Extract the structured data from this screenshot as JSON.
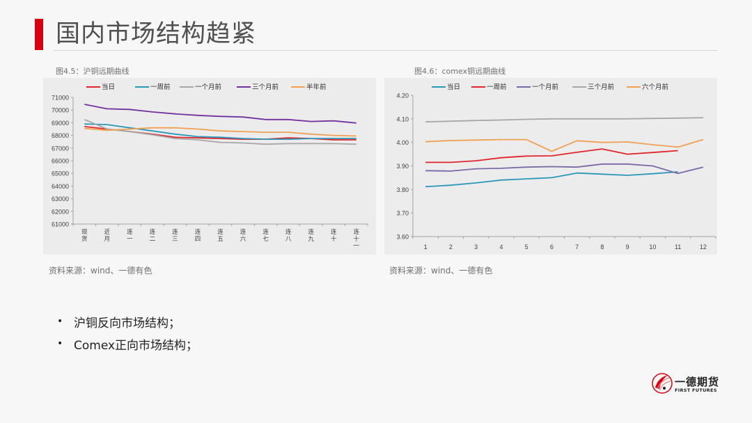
{
  "page": {
    "title": "国内市场结构趋紧",
    "accent_color": "#d7000f"
  },
  "figures": [
    {
      "caption": "图4.5：沪铜远期曲线",
      "source": "资料来源：wind、一德有色"
    },
    {
      "caption": "图4.6：comex铜远期曲线",
      "source": "资料来源：wind、一德有色"
    }
  ],
  "bullets": [
    "沪铜反向市场结构；",
    "Comex正向市场结构；"
  ],
  "logo": {
    "name_cn": "一德期货",
    "name_en": "FIRST FUTURES"
  },
  "chart_data": [
    {
      "type": "line",
      "title": "图4.5：沪铜远期曲线",
      "xlabel": "",
      "ylabel": "",
      "categories": [
        "现货",
        "近月",
        "连一",
        "连二",
        "连三",
        "连四",
        "连五",
        "连六",
        "连七",
        "连八",
        "连九",
        "连十",
        "连十一"
      ],
      "ylim": [
        61000,
        71000
      ],
      "yticks": [
        61000,
        62000,
        63000,
        64000,
        65000,
        66000,
        67000,
        68000,
        69000,
        70000,
        71000
      ],
      "grid": false,
      "legend_position": "top",
      "series": [
        {
          "name": "当日",
          "color": "#e0242b",
          "values": [
            68700,
            68500,
            68300,
            68100,
            67850,
            67800,
            67750,
            67700,
            67700,
            67800,
            67750,
            67650,
            67650
          ]
        },
        {
          "name": "一周前",
          "color": "#2a97b8",
          "values": [
            68900,
            68850,
            68600,
            68350,
            68100,
            67900,
            67850,
            67750,
            67700,
            67700,
            67750,
            67750,
            67750
          ]
        },
        {
          "name": "一个月前",
          "color": "#a6a6a6",
          "values": [
            69250,
            68500,
            68300,
            68050,
            67750,
            67650,
            67450,
            67400,
            67300,
            67350,
            67350,
            67350,
            67300
          ]
        },
        {
          "name": "三个月前",
          "color": "#7030a0",
          "values": [
            70450,
            70100,
            70050,
            69850,
            69700,
            69580,
            69500,
            69450,
            69250,
            69250,
            69100,
            69150,
            68980
          ]
        },
        {
          "name": "半年前",
          "color": "#f0a050",
          "values": [
            68550,
            68400,
            68500,
            68600,
            68600,
            68500,
            68350,
            68300,
            68250,
            68250,
            68100,
            68000,
            67950
          ]
        }
      ]
    },
    {
      "type": "line",
      "title": "图4.6：comex铜远期曲线",
      "xlabel": "",
      "ylabel": "",
      "categories": [
        "1",
        "2",
        "3",
        "4",
        "5",
        "6",
        "7",
        "8",
        "9",
        "10",
        "11",
        "12"
      ],
      "ylim": [
        3.6,
        4.2
      ],
      "yticks": [
        "3.60",
        "3.70",
        "3.80",
        "3.90",
        "4.00",
        "4.10",
        "4.20"
      ],
      "grid": false,
      "legend_position": "top",
      "series": [
        {
          "name": "当日",
          "color": "#2a97b8",
          "values": [
            3.812,
            3.818,
            3.828,
            3.84,
            3.845,
            3.85,
            3.87,
            3.865,
            3.86,
            3.867,
            3.875,
            null
          ]
        },
        {
          "name": "一周前",
          "color": "#e0242b",
          "values": [
            3.915,
            3.915,
            3.922,
            3.935,
            3.942,
            3.943,
            3.958,
            3.972,
            3.95,
            3.957,
            3.965,
            null
          ]
        },
        {
          "name": "一个月前",
          "color": "#7a68a6",
          "values": [
            3.88,
            3.878,
            3.888,
            3.89,
            3.895,
            3.897,
            3.895,
            3.908,
            3.908,
            3.9,
            3.868,
            3.895
          ]
        },
        {
          "name": "三个月前",
          "color": "#a6a6a6",
          "values": [
            4.087,
            4.09,
            4.093,
            4.095,
            4.098,
            4.1,
            4.1,
            4.1,
            4.1,
            4.102,
            4.103,
            4.105
          ]
        },
        {
          "name": "六个月前",
          "color": "#f0a050",
          "values": [
            4.003,
            4.008,
            4.01,
            4.012,
            4.012,
            3.962,
            4.007,
            4.0,
            4.002,
            3.99,
            3.98,
            4.012
          ]
        }
      ]
    }
  ]
}
